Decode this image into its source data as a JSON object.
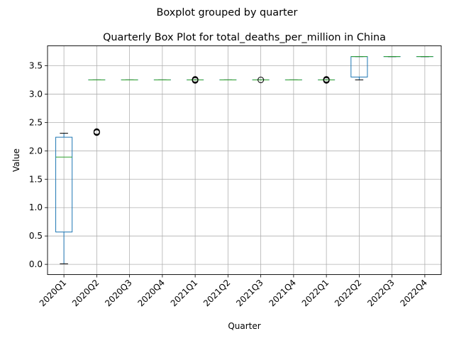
{
  "suptitle": "Boxplot grouped by quarter",
  "chart_data": {
    "type": "box",
    "title": "Quarterly Box Plot for total_deaths_per_million in China",
    "xlabel": "Quarter",
    "ylabel": "Value",
    "ylim": [
      -0.18,
      3.85
    ],
    "yticks": [
      0.0,
      0.5,
      1.0,
      1.5,
      2.0,
      2.5,
      3.0,
      3.5
    ],
    "ytick_labels": [
      "0.0",
      "0.5",
      "1.0",
      "1.5",
      "2.0",
      "2.5",
      "3.0",
      "3.5"
    ],
    "grid": true,
    "categories": [
      "2020Q1",
      "2020Q2",
      "2020Q3",
      "2020Q4",
      "2021Q1",
      "2021Q2",
      "2021Q3",
      "2021Q4",
      "2022Q1",
      "2022Q2",
      "2022Q3",
      "2022Q4"
    ],
    "boxes": [
      {
        "whislo": 0.01,
        "q1": 0.57,
        "med": 1.89,
        "q3": 2.24,
        "whishi": 2.31,
        "fliers": []
      },
      {
        "whislo": 3.25,
        "q1": 3.25,
        "med": 3.25,
        "q3": 3.25,
        "whishi": 3.25,
        "fliers": [
          2.32,
          2.33,
          2.34
        ]
      },
      {
        "whislo": 3.25,
        "q1": 3.25,
        "med": 3.25,
        "q3": 3.25,
        "whishi": 3.25,
        "fliers": []
      },
      {
        "whislo": 3.25,
        "q1": 3.25,
        "med": 3.25,
        "q3": 3.25,
        "whishi": 3.25,
        "fliers": []
      },
      {
        "whislo": 3.25,
        "q1": 3.25,
        "med": 3.25,
        "q3": 3.25,
        "whishi": 3.25,
        "fliers": [
          3.24,
          3.25,
          3.26
        ]
      },
      {
        "whislo": 3.25,
        "q1": 3.25,
        "med": 3.25,
        "q3": 3.25,
        "whishi": 3.25,
        "fliers": []
      },
      {
        "whislo": 3.25,
        "q1": 3.25,
        "med": 3.25,
        "q3": 3.25,
        "whishi": 3.25,
        "fliers": [
          3.25
        ]
      },
      {
        "whislo": 3.25,
        "q1": 3.25,
        "med": 3.25,
        "q3": 3.25,
        "whishi": 3.25,
        "fliers": []
      },
      {
        "whislo": 3.25,
        "q1": 3.25,
        "med": 3.25,
        "q3": 3.25,
        "whishi": 3.25,
        "fliers": [
          3.24,
          3.25,
          3.26
        ]
      },
      {
        "whislo": 3.25,
        "q1": 3.3,
        "med": 3.66,
        "q3": 3.66,
        "whishi": 3.66,
        "fliers": []
      },
      {
        "whislo": 3.66,
        "q1": 3.66,
        "med": 3.66,
        "q3": 3.66,
        "whishi": 3.66,
        "fliers": []
      },
      {
        "whislo": 3.66,
        "q1": 3.66,
        "med": 3.66,
        "q3": 3.66,
        "whishi": 3.66,
        "fliers": []
      }
    ],
    "colors": {
      "box": "#1f77b4",
      "median": "#2ca02c",
      "whisker": "#000000",
      "grid": "#b0b0b0",
      "flier": "#000000"
    }
  }
}
